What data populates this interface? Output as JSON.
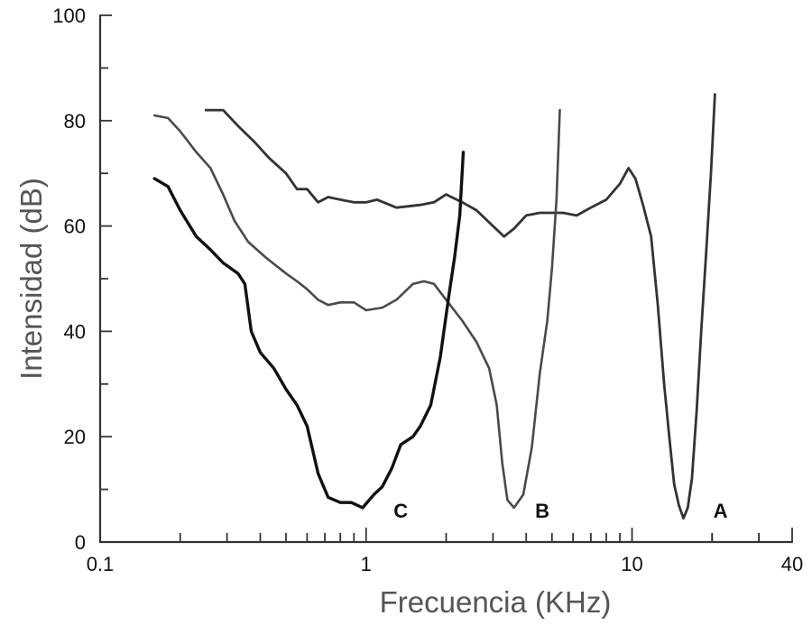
{
  "chart_data": {
    "type": "line",
    "xlabel": "Frecuencia (KHz)",
    "ylabel": "Intensidad (dB)",
    "x_scale": "log",
    "xlim": [
      0.1,
      40
    ],
    "ylim": [
      0,
      100
    ],
    "x_ticks": [
      {
        "value": 0.1,
        "label": "0.1"
      },
      {
        "value": 1,
        "label": "1"
      },
      {
        "value": 10,
        "label": "10"
      },
      {
        "value": 40,
        "label": "40"
      }
    ],
    "y_ticks": [
      {
        "value": 0,
        "label": "0"
      },
      {
        "value": 20,
        "label": "20"
      },
      {
        "value": 40,
        "label": "40"
      },
      {
        "value": 60,
        "label": "60"
      },
      {
        "value": 80,
        "label": "80"
      },
      {
        "value": 100,
        "label": "100"
      }
    ],
    "grid": false,
    "series": [
      {
        "name": "A",
        "color": "#333333",
        "stroke": 2.8,
        "points": [
          [
            0.25,
            82
          ],
          [
            0.29,
            82
          ],
          [
            0.33,
            79
          ],
          [
            0.38,
            76
          ],
          [
            0.43,
            73
          ],
          [
            0.5,
            70
          ],
          [
            0.55,
            67
          ],
          [
            0.6,
            67
          ],
          [
            0.66,
            64.5
          ],
          [
            0.72,
            65.5
          ],
          [
            0.8,
            65
          ],
          [
            0.9,
            64.5
          ],
          [
            1.0,
            64.5
          ],
          [
            1.1,
            65
          ],
          [
            1.3,
            63.5
          ],
          [
            1.6,
            64
          ],
          [
            1.8,
            64.5
          ],
          [
            2.0,
            66
          ],
          [
            2.3,
            64.5
          ],
          [
            2.6,
            63
          ],
          [
            3.0,
            60
          ],
          [
            3.3,
            58
          ],
          [
            3.6,
            59.5
          ],
          [
            4.0,
            62
          ],
          [
            4.5,
            62.5
          ],
          [
            5.0,
            62.5
          ],
          [
            5.5,
            62.5
          ],
          [
            6.2,
            62
          ],
          [
            7.0,
            63.5
          ],
          [
            8.0,
            65
          ],
          [
            9.0,
            68
          ],
          [
            9.7,
            71
          ],
          [
            10.3,
            69
          ],
          [
            11.0,
            64
          ],
          [
            11.8,
            58
          ],
          [
            12.5,
            45
          ],
          [
            13.2,
            30
          ],
          [
            13.8,
            20
          ],
          [
            14.4,
            11
          ],
          [
            15.0,
            7
          ],
          [
            15.6,
            4.5
          ],
          [
            16.2,
            6.5
          ],
          [
            16.8,
            12
          ],
          [
            17.5,
            25
          ],
          [
            18.2,
            40
          ],
          [
            19.0,
            55
          ],
          [
            19.8,
            70
          ],
          [
            20.5,
            85
          ]
        ],
        "label": "A",
        "label_x": 21.5,
        "label_y": 6
      },
      {
        "name": "B",
        "color": "#4a4a4a",
        "stroke": 2.6,
        "points": [
          [
            0.16,
            81
          ],
          [
            0.18,
            80.5
          ],
          [
            0.2,
            78
          ],
          [
            0.23,
            74
          ],
          [
            0.26,
            71
          ],
          [
            0.29,
            66
          ],
          [
            0.32,
            61
          ],
          [
            0.36,
            57
          ],
          [
            0.42,
            54
          ],
          [
            0.5,
            51
          ],
          [
            0.55,
            49.5
          ],
          [
            0.6,
            48
          ],
          [
            0.66,
            46
          ],
          [
            0.72,
            45
          ],
          [
            0.8,
            45.5
          ],
          [
            0.9,
            45.5
          ],
          [
            1.0,
            44
          ],
          [
            1.15,
            44.5
          ],
          [
            1.3,
            46
          ],
          [
            1.5,
            49
          ],
          [
            1.65,
            49.5
          ],
          [
            1.8,
            49
          ],
          [
            2.0,
            46
          ],
          [
            2.3,
            42
          ],
          [
            2.6,
            38
          ],
          [
            2.9,
            33
          ],
          [
            3.1,
            26
          ],
          [
            3.25,
            15
          ],
          [
            3.4,
            8
          ],
          [
            3.6,
            6.5
          ],
          [
            3.9,
            9
          ],
          [
            4.2,
            18
          ],
          [
            4.5,
            32
          ],
          [
            4.8,
            42
          ],
          [
            5.0,
            52
          ],
          [
            5.2,
            65
          ],
          [
            5.35,
            82
          ]
        ],
        "label": "B",
        "label_x": 4.6,
        "label_y": 6
      },
      {
        "name": "C",
        "color": "#111111",
        "stroke": 3.4,
        "points": [
          [
            0.16,
            69
          ],
          [
            0.18,
            67.5
          ],
          [
            0.2,
            63
          ],
          [
            0.23,
            58
          ],
          [
            0.26,
            55.5
          ],
          [
            0.29,
            53
          ],
          [
            0.33,
            51
          ],
          [
            0.35,
            49
          ],
          [
            0.37,
            40
          ],
          [
            0.4,
            36
          ],
          [
            0.45,
            33
          ],
          [
            0.5,
            29
          ],
          [
            0.55,
            26
          ],
          [
            0.6,
            22
          ],
          [
            0.66,
            13
          ],
          [
            0.72,
            8.5
          ],
          [
            0.8,
            7.5
          ],
          [
            0.88,
            7.5
          ],
          [
            0.97,
            6.5
          ],
          [
            1.07,
            9
          ],
          [
            1.15,
            10.5
          ],
          [
            1.25,
            14
          ],
          [
            1.35,
            18.5
          ],
          [
            1.5,
            20
          ],
          [
            1.6,
            22
          ],
          [
            1.75,
            26
          ],
          [
            1.9,
            35
          ],
          [
            2.05,
            47
          ],
          [
            2.15,
            54
          ],
          [
            2.25,
            62
          ],
          [
            2.32,
            74
          ]
        ],
        "label": "C",
        "label_x": 1.35,
        "label_y": 6
      }
    ]
  }
}
